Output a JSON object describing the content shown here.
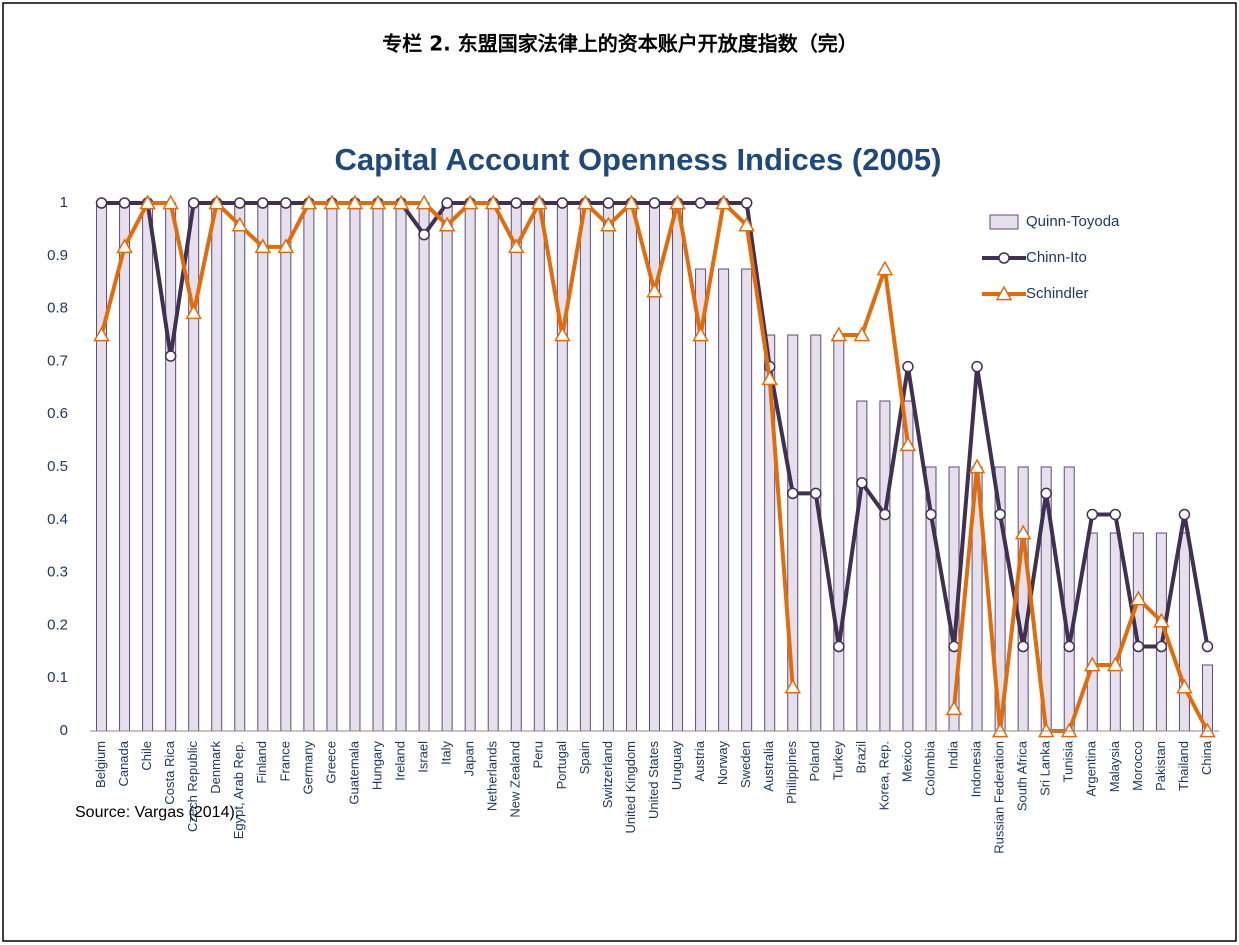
{
  "header": {
    "title": "专栏 2. 东盟国家法律上的资本账户开放度指数（完）"
  },
  "footer": {
    "source": "Source: Vargas (2014)."
  },
  "chart_data": {
    "type": "bar-line",
    "title": "Capital Account Openness Indices (2005)",
    "categories": [
      "Belgium",
      "Canada",
      "Chile",
      "Costa Rica",
      "Czech Republic",
      "Denmark",
      "Egypt, Arab Rep.",
      "Finland",
      "France",
      "Germany",
      "Greece",
      "Guatemala",
      "Hungary",
      "Ireland",
      "Israel",
      "Italy",
      "Japan",
      "Netherlands",
      "New Zealand",
      "Peru",
      "Portugal",
      "Spain",
      "Switzerland",
      "United Kingdom",
      "United States",
      "Uruguay",
      "Austria",
      "Norway",
      "Sweden",
      "Australia",
      "Philippines",
      "Poland",
      "Turkey",
      "Brazil",
      "Korea, Rep.",
      "Mexico",
      "Colombia",
      "India",
      "Indonesia",
      "Russian Federation",
      "South Africa",
      "Sri Lanka",
      "Tunisia",
      "Argentina",
      "Malaysia",
      "Morocco",
      "Pakistan",
      "Thailand",
      "China"
    ],
    "series": [
      {
        "name": "Quinn-Toyoda",
        "kind": "bar",
        "color": "#e6e0ec",
        "values": [
          1,
          1,
          1,
          1,
          1,
          1,
          1,
          1,
          1,
          1,
          1,
          1,
          1,
          1,
          1,
          1,
          1,
          1,
          1,
          1,
          1,
          1,
          1,
          1,
          1,
          1,
          0.875,
          0.875,
          0.875,
          0.75,
          0.75,
          0.75,
          0.75,
          0.625,
          0.625,
          0.625,
          0.5,
          0.5,
          0.5,
          0.5,
          0.5,
          0.5,
          0.5,
          0.375,
          0.375,
          0.375,
          0.375,
          0.375,
          0.125
        ]
      },
      {
        "name": "Chinn-Ito",
        "kind": "line",
        "marker": "circle",
        "color": "#403152",
        "values": [
          1,
          1,
          1,
          0.71,
          1,
          1,
          1,
          1,
          1,
          1,
          1,
          1,
          1,
          1,
          0.94,
          1,
          1,
          1,
          1,
          1,
          1,
          1,
          1,
          1,
          1,
          1,
          1,
          1,
          1,
          0.69,
          0.45,
          0.45,
          0.16,
          0.47,
          0.41,
          0.69,
          0.41,
          0.16,
          0.69,
          0.41,
          0.16,
          0.45,
          0.16,
          0.41,
          0.41,
          0.16,
          0.16,
          0.41,
          0.16
        ]
      },
      {
        "name": "Schindler",
        "kind": "line",
        "marker": "triangle",
        "color": "#e36c0a",
        "values": [
          0.75,
          0.917,
          1,
          1,
          0.792,
          1,
          0.958,
          0.917,
          0.917,
          1,
          1,
          1,
          1,
          1,
          1,
          0.958,
          1,
          1,
          0.917,
          1,
          0.75,
          1,
          0.958,
          1,
          0.833,
          1,
          0.75,
          1,
          0.958,
          0.667,
          0.083,
          null,
          0.75,
          0.75,
          0.875,
          0.542,
          null,
          0.042,
          0.5,
          0,
          0.375,
          0,
          0,
          0.125,
          0.125,
          0.25,
          0.208,
          0.083,
          0
        ]
      }
    ],
    "ylim": [
      0,
      1.0
    ],
    "yticks": [
      0,
      0.1,
      0.2,
      0.3,
      0.4,
      0.5,
      0.6,
      0.7,
      0.8,
      0.9,
      1
    ],
    "grid": false,
    "legend": "upper right"
  }
}
